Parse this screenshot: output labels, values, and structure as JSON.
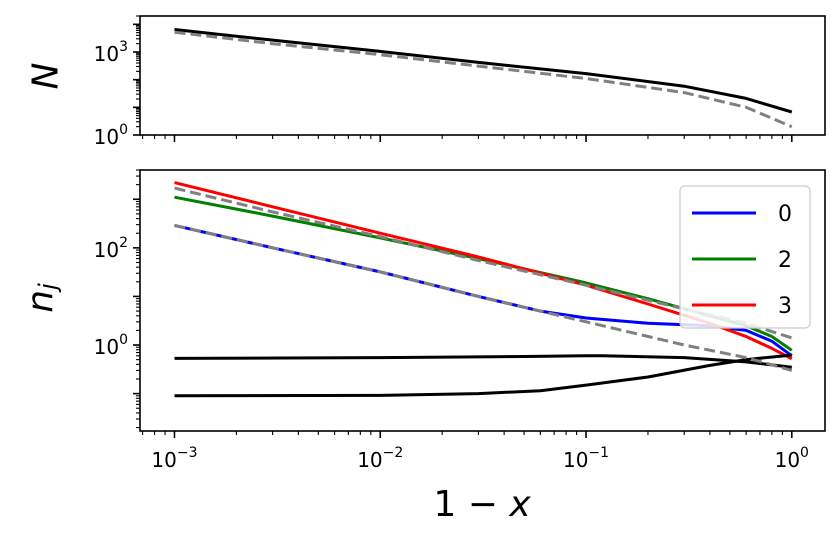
{
  "chart_data": [
    {
      "type": "line",
      "panel": "top",
      "ylabel": "N",
      "xlabel": "",
      "xscale": "log",
      "yscale": "log",
      "xlim": [
        0.00068,
        1.45
      ],
      "ylim": [
        1,
        20000
      ],
      "yticks": [
        {
          "base": "10",
          "exp": "0",
          "value": 1
        },
        {
          "base": "10",
          "exp": "3",
          "value": 1000
        }
      ],
      "grid": false,
      "series": [
        {
          "color": "#000000",
          "dash": "solid",
          "x": [
            0.001,
            0.003,
            0.01,
            0.03,
            0.1,
            0.3,
            0.6,
            1.0
          ],
          "y": [
            6500,
            2700,
            1050,
            420,
            165,
            58,
            21,
            6.8
          ]
        },
        {
          "color": "#808080",
          "dash": "dashed",
          "x": [
            0.001,
            0.003,
            0.01,
            0.03,
            0.1,
            0.3,
            0.6,
            1.0
          ],
          "y": [
            5200,
            2000,
            800,
            310,
            110,
            34,
            10,
            2.0
          ]
        }
      ]
    },
    {
      "type": "line",
      "panel": "bottom",
      "ylabel": "n_j",
      "xlabel": "1 − x",
      "xscale": "log",
      "yscale": "log",
      "xlim": [
        0.00068,
        1.45
      ],
      "ylim": [
        0.017,
        4000
      ],
      "xticks": [
        {
          "base": "10",
          "exp": "−3",
          "value": 0.001
        },
        {
          "base": "10",
          "exp": "−2",
          "value": 0.01
        },
        {
          "base": "10",
          "exp": "−1",
          "value": 0.1
        },
        {
          "base": "10",
          "exp": "0",
          "value": 1
        }
      ],
      "yticks": [
        {
          "base": "10",
          "exp": "0",
          "value": 1
        },
        {
          "base": "10",
          "exp": "2",
          "value": 100
        }
      ],
      "legend": {
        "placement": "top-right",
        "entries": [
          {
            "label": "0",
            "color": "#0000ff"
          },
          {
            "label": "2",
            "color": "#008000"
          },
          {
            "label": "3",
            "color": "#ff0000"
          }
        ]
      },
      "grid": false,
      "series": [
        {
          "name": "0",
          "color": "#0000ff",
          "dash": "solid",
          "x": [
            0.001,
            0.003,
            0.01,
            0.03,
            0.06,
            0.1,
            0.2,
            0.4,
            0.6,
            0.8,
            1.0
          ],
          "y": [
            290,
            100,
            32,
            10,
            5.0,
            3.6,
            2.8,
            2.5,
            2.0,
            1.2,
            0.6
          ]
        },
        {
          "name": "2",
          "color": "#008000",
          "dash": "solid",
          "x": [
            0.001,
            0.003,
            0.01,
            0.03,
            0.1,
            0.2,
            0.4,
            0.6,
            0.8,
            1.0
          ],
          "y": [
            1100,
            450,
            160,
            60,
            19,
            9,
            4,
            2.5,
            1.5,
            0.78
          ]
        },
        {
          "name": "3",
          "color": "#ff0000",
          "dash": "solid",
          "x": [
            0.001,
            0.003,
            0.01,
            0.03,
            0.1,
            0.2,
            0.4,
            0.6,
            0.8,
            1.0
          ],
          "y": [
            2200,
            700,
            200,
            65,
            17,
            7,
            2.8,
            1.5,
            0.85,
            0.52
          ]
        },
        {
          "color": "#808080",
          "dash": "dashed",
          "x": [
            0.001,
            0.003,
            0.01,
            0.03,
            0.1,
            0.3,
            0.6,
            1.0
          ],
          "y": [
            1700,
            550,
            170,
            55,
            17,
            5.5,
            2.8,
            1.4
          ]
        },
        {
          "color": "#808080",
          "dash": "dashed",
          "x": [
            0.001,
            0.003,
            0.01,
            0.03,
            0.06,
            0.1,
            0.3,
            0.6,
            1.0
          ],
          "y": [
            290,
            100,
            32,
            10,
            5.0,
            3.0,
            1.0,
            0.55,
            0.3
          ]
        },
        {
          "color": "#000000",
          "dash": "solid",
          "x": [
            0.001,
            0.01,
            0.05,
            0.1,
            0.12,
            0.3,
            0.6,
            1.0
          ],
          "y": [
            0.53,
            0.55,
            0.58,
            0.6,
            0.6,
            0.55,
            0.45,
            0.35
          ]
        },
        {
          "color": "#000000",
          "dash": "solid",
          "x": [
            0.001,
            0.01,
            0.03,
            0.06,
            0.1,
            0.2,
            0.4,
            0.6,
            1.0
          ],
          "y": [
            0.09,
            0.092,
            0.1,
            0.115,
            0.15,
            0.22,
            0.38,
            0.5,
            0.62
          ]
        }
      ]
    }
  ]
}
